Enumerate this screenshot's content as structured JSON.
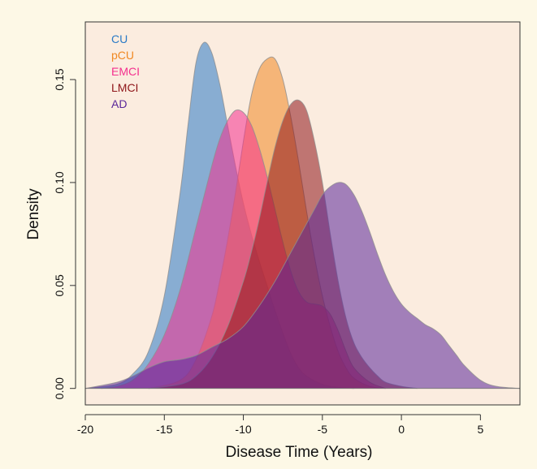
{
  "chart_data": {
    "type": "area",
    "title": "",
    "xlabel": "Disease Time (Years)",
    "ylabel": "Density",
    "xlim": [
      -20,
      7.5
    ],
    "ylim": [
      -0.008,
      0.178
    ],
    "xticks": [
      -20,
      -15,
      -10,
      -5,
      0,
      5
    ],
    "yticks": [
      0.0,
      0.05,
      0.1,
      0.15
    ],
    "xtick_labels": [
      "-20",
      "-15",
      "-10",
      "-5",
      "0",
      "5"
    ],
    "ytick_labels": [
      "0.00",
      "0.05",
      "0.10",
      "0.15"
    ],
    "grid": false,
    "legend_position": "top-left",
    "series": [
      {
        "name": "CU",
        "color": "#2a7ac6",
        "x": [
          -20,
          -18,
          -17,
          -16,
          -15,
          -14,
          -13.5,
          -13,
          -12.5,
          -12,
          -11.5,
          -11,
          -10.5,
          -10,
          -9.5,
          -9,
          -8.5,
          -8,
          -7.5,
          -7,
          -6.5,
          -6,
          -5,
          -4,
          -3
        ],
        "y": [
          0.0,
          0.002,
          0.007,
          0.018,
          0.045,
          0.095,
          0.128,
          0.158,
          0.168,
          0.163,
          0.148,
          0.128,
          0.108,
          0.09,
          0.075,
          0.062,
          0.05,
          0.038,
          0.027,
          0.017,
          0.01,
          0.006,
          0.002,
          0.0005,
          0.0
        ]
      },
      {
        "name": "pCU",
        "color": "#f08822",
        "x": [
          -16,
          -14,
          -13,
          -12,
          -11.5,
          -11,
          -10.5,
          -10,
          -9.5,
          -9,
          -8.5,
          -8,
          -7.5,
          -7,
          -6.5,
          -6,
          -5.5,
          -5,
          -4.5,
          -4,
          -3.5,
          -3,
          -2,
          -1
        ],
        "y": [
          0.0,
          0.004,
          0.014,
          0.035,
          0.052,
          0.072,
          0.095,
          0.12,
          0.142,
          0.155,
          0.16,
          0.16,
          0.15,
          0.132,
          0.11,
          0.086,
          0.064,
          0.045,
          0.03,
          0.018,
          0.01,
          0.005,
          0.001,
          0.0
        ]
      },
      {
        "name": "EMCI",
        "color": "#f4308e",
        "x": [
          -19,
          -18,
          -17,
          -16,
          -15,
          -14,
          -13,
          -12,
          -11.5,
          -11,
          -10.5,
          -10,
          -9.5,
          -9,
          -8.5,
          -8,
          -7.5,
          -7,
          -6.5,
          -6,
          -5.5,
          -5,
          -4.5,
          -4,
          -3.5,
          -3,
          -2,
          -1
        ],
        "y": [
          0.0,
          0.001,
          0.004,
          0.012,
          0.026,
          0.048,
          0.078,
          0.108,
          0.121,
          0.13,
          0.135,
          0.134,
          0.128,
          0.117,
          0.103,
          0.087,
          0.071,
          0.057,
          0.047,
          0.042,
          0.041,
          0.04,
          0.036,
          0.028,
          0.018,
          0.01,
          0.003,
          0.0
        ]
      },
      {
        "name": "LMCI",
        "color": "#8e1418",
        "x": [
          -16,
          -14,
          -13,
          -12,
          -11,
          -10,
          -9.5,
          -9,
          -8.5,
          -8,
          -7.5,
          -7,
          -6.5,
          -6,
          -5.5,
          -5,
          -4.5,
          -4,
          -3.5,
          -3,
          -2.5,
          -2,
          -1.5,
          -1,
          0,
          1
        ],
        "y": [
          0.0,
          0.002,
          0.006,
          0.015,
          0.03,
          0.052,
          0.066,
          0.082,
          0.1,
          0.117,
          0.13,
          0.138,
          0.14,
          0.135,
          0.12,
          0.1,
          0.075,
          0.052,
          0.034,
          0.022,
          0.015,
          0.01,
          0.006,
          0.003,
          0.001,
          0.0
        ]
      },
      {
        "name": "AD",
        "color": "#5a2699",
        "x": [
          -20,
          -18,
          -17,
          -16,
          -15,
          -14,
          -13,
          -12,
          -11,
          -10,
          -9,
          -8,
          -7,
          -6,
          -5.5,
          -5,
          -4.5,
          -4,
          -3.5,
          -3,
          -2.5,
          -2,
          -1.5,
          -1,
          -0.5,
          0,
          0.5,
          1,
          1.5,
          2,
          2.5,
          3,
          3.5,
          4,
          5,
          6,
          7.5
        ],
        "y": [
          0.0,
          0.003,
          0.006,
          0.01,
          0.013,
          0.014,
          0.016,
          0.02,
          0.024,
          0.03,
          0.04,
          0.052,
          0.066,
          0.08,
          0.087,
          0.094,
          0.098,
          0.1,
          0.099,
          0.094,
          0.086,
          0.076,
          0.065,
          0.055,
          0.047,
          0.041,
          0.037,
          0.034,
          0.031,
          0.029,
          0.026,
          0.021,
          0.016,
          0.011,
          0.004,
          0.001,
          0.0
        ]
      }
    ]
  }
}
